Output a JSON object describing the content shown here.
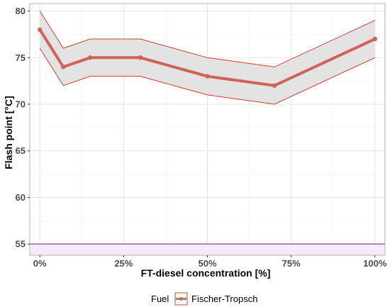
{
  "chart_data": {
    "type": "line",
    "xlabel": "FT-diesel concentration [%]",
    "ylabel": "Flash point [°C]",
    "xlim": [
      -3,
      103
    ],
    "ylim": [
      53.8,
      80.8
    ],
    "x_ticks": [
      0,
      25,
      50,
      75,
      100
    ],
    "x_tick_labels": [
      "0%",
      "25%",
      "50%",
      "75%",
      "100%"
    ],
    "y_ticks": [
      55,
      60,
      65,
      70,
      75,
      80
    ],
    "y_tick_labels": [
      "55",
      "60",
      "65",
      "70",
      "75",
      "80"
    ],
    "grid": true,
    "x": [
      0,
      7,
      15,
      30,
      50,
      70,
      100
    ],
    "series": [
      {
        "name": "Fischer-Tropsch",
        "values": [
          78,
          74,
          75,
          75,
          73,
          72,
          77
        ],
        "lower": [
          76,
          72,
          73,
          73,
          71,
          70,
          75
        ],
        "upper": [
          80,
          76,
          77,
          77,
          75,
          74,
          79
        ]
      }
    ],
    "reference_line": {
      "y": 55
    },
    "legend": {
      "title": "Fuel",
      "position": "bottom"
    },
    "colors": {
      "line": "#d0625a",
      "band_fill": "#e3e3e3",
      "band_edge": "#d9382c",
      "reference_line": "#9a4fa3",
      "reference_band": "#f7eafb",
      "legend_key": "#b07a56"
    }
  }
}
